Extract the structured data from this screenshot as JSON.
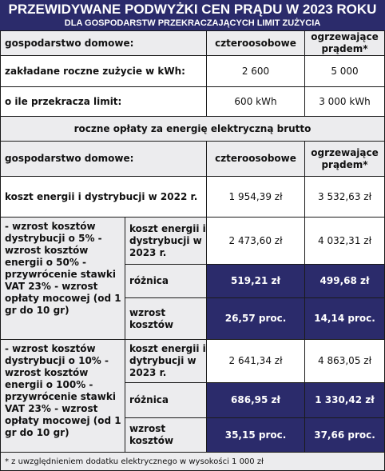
{
  "header": {
    "title": "PRZEWIDYWANE PODWYŻKI CEN PRĄDU W 2023 ROKU",
    "subtitle": "DLA GOSPODARSTW PRZEKRACZAJĄCYCH LIMIT ZUŻYCIA"
  },
  "top": {
    "household_label": "gospodarstwo domowe:",
    "col1": "czteroosobowe",
    "col2": "ogrzewające prądem*",
    "usage_label": "zakładane roczne zużycie w kWh:",
    "usage_1": "2 600",
    "usage_2": "5 000",
    "excess_label": "o ile przekracza limit:",
    "excess_1": "600 kWh",
    "excess_2": "3 000 kWh"
  },
  "section_title": "roczne opłaty za energię elektryczną brutto",
  "costs": {
    "household_label": "gospodarstwo domowe:",
    "col1": "czteroosobowe",
    "col2": "ogrzewające prądem*",
    "cost2022_label": "koszt energii i dystrybucji w 2022 r.",
    "cost2022_1": "1 954,39 zł",
    "cost2022_2": "3 532,63 zł"
  },
  "scenario1": {
    "desc": "- wzrost kosztów dystrybucji o 5% - wzrost kosztów energii o 50% - przywrócenie stawki VAT 23% - wzrost opłaty mocowej (od 1 gr do 10 gr)",
    "cost_label": "koszt energii i dystrybucji w 2023 r.",
    "cost_1": "2 473,60 zł",
    "cost_2": "4 032,31 zł",
    "diff_label": "różnica",
    "diff_1": "519,21 zł",
    "diff_2": "499,68 zł",
    "inc_label": "wzrost kosztów",
    "inc_1": "26,57 proc.",
    "inc_2": "14,14 proc."
  },
  "scenario2": {
    "desc": "- wzrost kosztów dystrybucji o 10% - wzrost kosztów energii o 100% - przywrócenie stawki VAT 23% - wzrost opłaty mocowej (od 1 gr do 10 gr)",
    "cost_label": "koszt energii i dytrybucji w 2023 r.",
    "cost_1": "2 641,34 zł",
    "cost_2": "4 863,05 zł",
    "diff_label": "różnica",
    "diff_1": "686,95 zł",
    "diff_2": "1 330,42 zł",
    "inc_label": "wzrost kosztów",
    "inc_1": "35,15 proc.",
    "inc_2": "37,66 proc."
  },
  "footnote": "* z uwzględnieniem dodatku elektrycznego w wysokości 1 000 zł"
}
